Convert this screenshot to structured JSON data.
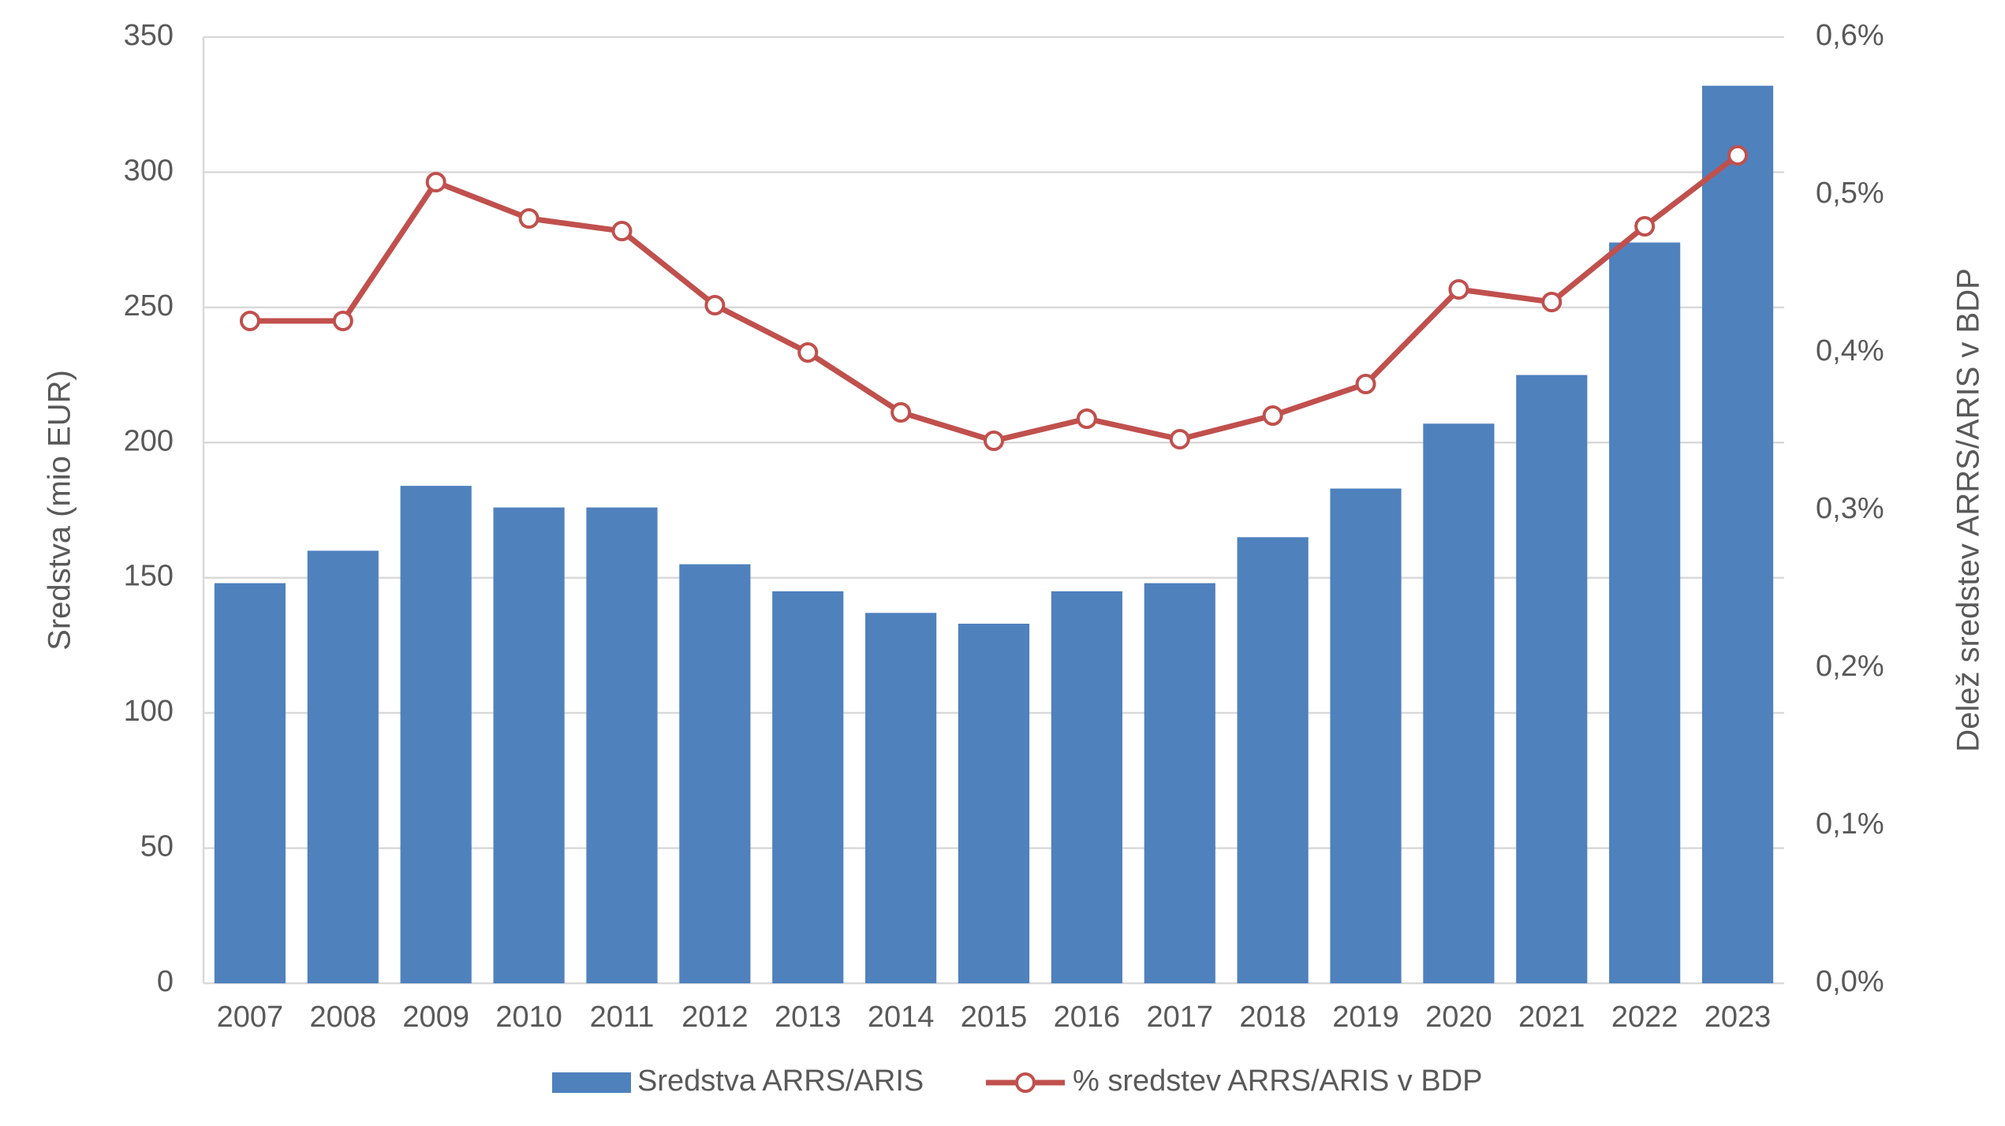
{
  "chart_data": {
    "type": "bar",
    "categories": [
      "2007",
      "2008",
      "2009",
      "2010",
      "2011",
      "2012",
      "2013",
      "2014",
      "2015",
      "2016",
      "2017",
      "2018",
      "2019",
      "2020",
      "2021",
      "2022",
      "2023"
    ],
    "series": [
      {
        "name": "Sredstva ARRS/ARIS",
        "type": "bar",
        "axis": "left",
        "color": "#4F81BD",
        "values": [
          148,
          160,
          184,
          176,
          176,
          155,
          145,
          137,
          133,
          145,
          148,
          165,
          183,
          207,
          225,
          274,
          332
        ]
      },
      {
        "name": "% sredstev ARRS/ARIS v BDP",
        "type": "line",
        "axis": "right",
        "color": "#C0504D",
        "values": [
          0.42,
          0.42,
          0.508,
          0.485,
          0.477,
          0.43,
          0.4,
          0.362,
          0.344,
          0.358,
          0.345,
          0.36,
          0.38,
          0.44,
          0.432,
          0.48,
          0.525
        ]
      }
    ],
    "y_left": {
      "label": "Sredstva (mio EUR)",
      "lim": [
        0,
        350
      ],
      "ticks": [
        0,
        50,
        100,
        150,
        200,
        250,
        300,
        350
      ],
      "tick_labels": [
        "0",
        "50",
        "100",
        "150",
        "200",
        "250",
        "300",
        "350"
      ]
    },
    "y_right": {
      "label": "Delež sredstev ARRS/ARIS v BDP",
      "lim": [
        0,
        0.6
      ],
      "ticks": [
        0,
        0.1,
        0.2,
        0.3,
        0.4,
        0.5,
        0.6
      ],
      "tick_labels": [
        "0,0%",
        "0,1%",
        "0,2%",
        "0,3%",
        "0,4%",
        "0,5%",
        "0,6%"
      ]
    },
    "grid": true,
    "legend_position": "bottom-center",
    "gridline_color": "#D9D9D9",
    "text_color": "#595959"
  }
}
